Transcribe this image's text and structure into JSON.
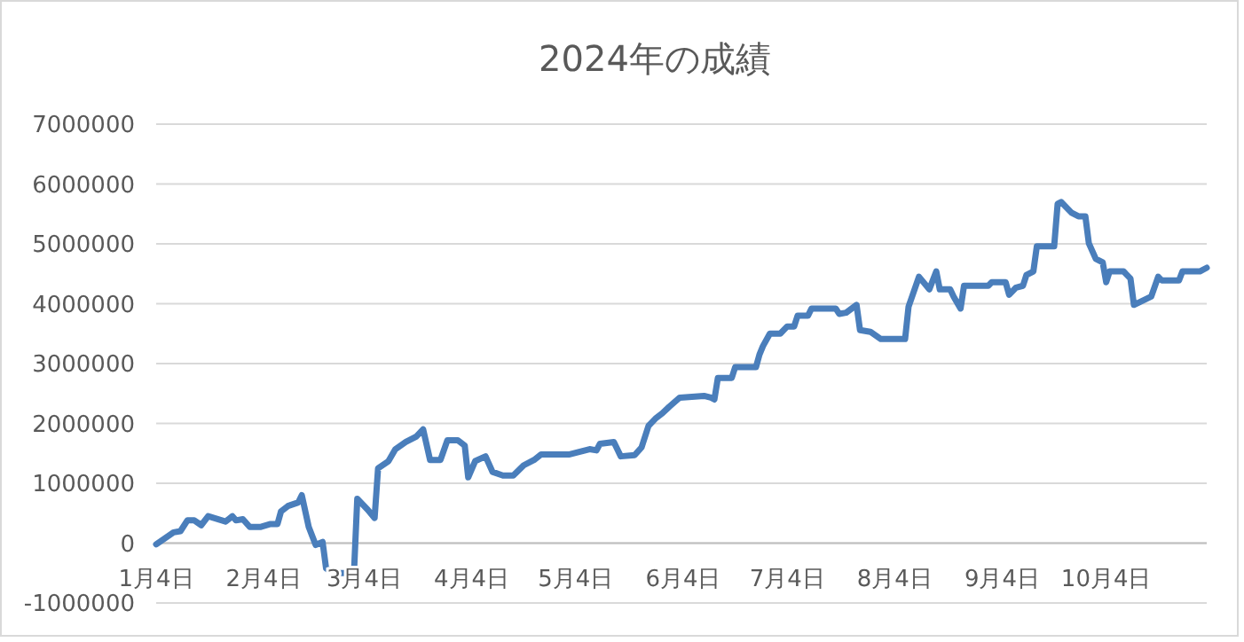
{
  "chart_data": {
    "type": "line",
    "title": "2024年の成績",
    "x": [
      "--01-04",
      "--01-09",
      "--01-11",
      "--01-13",
      "--01-15",
      "--01-17",
      "--01-19",
      "--01-24",
      "--01-26",
      "--01-27",
      "--01-29",
      "--01-31",
      "--02-03",
      "--02-06",
      "--02-08",
      "--02-09",
      "--02-11",
      "--02-14",
      "--02-15",
      "--02-17",
      "--02-19",
      "--02-21",
      "--02-22",
      "--02-24",
      "--02-29",
      "--03-01",
      "--03-02",
      "--03-05",
      "--03-07",
      "--03-08",
      "--03-11",
      "--03-13",
      "--03-16",
      "--03-19",
      "--03-21",
      "--03-23",
      "--03-26",
      "--03-28",
      "--03-31",
      "--04-02",
      "--04-03",
      "--04-05",
      "--04-08",
      "--04-10",
      "--04-13",
      "--04-16",
      "--04-19",
      "--04-22",
      "--04-24",
      "--05-02",
      "--05-08",
      "--05-10",
      "--05-11",
      "--05-15",
      "--05-17",
      "--05-21",
      "--05-23",
      "--05-25",
      "--05-27",
      "--05-29",
      "--05-31",
      "--06-03",
      "--06-10",
      "--06-12",
      "--06-13",
      "--06-14",
      "--06-18",
      "--06-19",
      "--06-25",
      "--06-26",
      "--06-27",
      "--06-29",
      "--07-02",
      "--07-04",
      "--07-06",
      "--07-07",
      "--07-10",
      "--07-11",
      "--07-18",
      "--07-19",
      "--07-21",
      "--07-24",
      "--07-25",
      "--07-28",
      "--07-31",
      "--08-07",
      "--08-08",
      "--08-11",
      "--08-14",
      "--08-16",
      "--08-17",
      "--08-20",
      "--08-21",
      "--08-23",
      "--08-24",
      "--08-31",
      "--09-01",
      "--09-05",
      "--09-06",
      "--09-08",
      "--09-10",
      "--09-11",
      "--09-13",
      "--09-14",
      "--09-19",
      "--09-20",
      "--09-21",
      "--09-24",
      "--09-26",
      "--09-28",
      "--09-29",
      "--10-01",
      "--10-03",
      "--10-04",
      "--10-05",
      "--10-09",
      "--10-11",
      "--10-12",
      "--10-17",
      "--10-19",
      "--10-20",
      "--10-25",
      "--10-26",
      "--10-31",
      "--11-02"
    ],
    "series": [
      {
        "color": "#4a7ebb",
        "values": [
          -20000,
          180000,
          200000,
          380000,
          380000,
          300000,
          450000,
          360000,
          450000,
          380000,
          400000,
          270000,
          270000,
          320000,
          320000,
          530000,
          620000,
          680000,
          800000,
          270000,
          -30000,
          20000,
          -420000,
          -500000,
          -500000,
          -560000,
          740000,
          560000,
          420000,
          1250000,
          1370000,
          1570000,
          1690000,
          1780000,
          1900000,
          1390000,
          1390000,
          1720000,
          1720000,
          1630000,
          1100000,
          1370000,
          1450000,
          1190000,
          1130000,
          1130000,
          1300000,
          1390000,
          1480000,
          1480000,
          1570000,
          1550000,
          1660000,
          1690000,
          1450000,
          1470000,
          1600000,
          1960000,
          2080000,
          2170000,
          2280000,
          2430000,
          2460000,
          2430000,
          2400000,
          2760000,
          2760000,
          2940000,
          2940000,
          3150000,
          3290000,
          3500000,
          3500000,
          3620000,
          3620000,
          3800000,
          3800000,
          3920000,
          3920000,
          3830000,
          3850000,
          3980000,
          3560000,
          3530000,
          3410000,
          3410000,
          3950000,
          4450000,
          4240000,
          4540000,
          4240000,
          4240000,
          4120000,
          3920000,
          4300000,
          4300000,
          4360000,
          4360000,
          4150000,
          4270000,
          4300000,
          4480000,
          4540000,
          4960000,
          4960000,
          5670000,
          5700000,
          5520000,
          5460000,
          5460000,
          5010000,
          4750000,
          4690000,
          4360000,
          4540000,
          4540000,
          4420000,
          3980000,
          4120000,
          4450000,
          4390000,
          4390000,
          4540000,
          4540000,
          4600000
        ]
      }
    ],
    "xlim": [
      "--01-04",
      "--11-02"
    ],
    "xticks": [
      {
        "value": "--01-04",
        "label": "1月4日"
      },
      {
        "value": "--02-04",
        "label": "2月4日"
      },
      {
        "value": "--03-04",
        "label": "3月4日"
      },
      {
        "value": "--04-04",
        "label": "4月4日"
      },
      {
        "value": "--05-04",
        "label": "5月4日"
      },
      {
        "value": "--06-04",
        "label": "6月4日"
      },
      {
        "value": "--07-04",
        "label": "7月4日"
      },
      {
        "value": "--08-04",
        "label": "8月4日"
      },
      {
        "value": "--09-04",
        "label": "9月4日"
      },
      {
        "value": "--10-04",
        "label": "10月4日"
      }
    ],
    "ylim": [
      -1000000,
      7000000
    ],
    "yticks": [
      -1000000,
      0,
      1000000,
      2000000,
      3000000,
      4000000,
      5000000,
      6000000,
      7000000
    ],
    "grid": "y",
    "marker": "none",
    "line_style": "solid"
  }
}
